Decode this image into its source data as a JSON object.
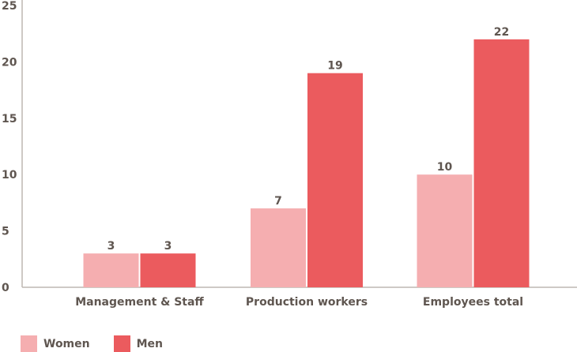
{
  "chart_data": {
    "type": "bar",
    "categories": [
      "Management & Staff",
      "Production workers",
      "Employees total"
    ],
    "series": [
      {
        "name": "Women",
        "values": [
          3,
          7,
          10
        ],
        "color": "#f5aeb0"
      },
      {
        "name": "Men",
        "values": [
          3,
          19,
          22
        ],
        "color": "#eb5b5e"
      }
    ],
    "yticks": [
      "0",
      "5",
      "10",
      "15",
      "20",
      "25"
    ],
    "ylim": [
      0,
      25
    ],
    "grid": false,
    "legend": "bottom-left"
  }
}
